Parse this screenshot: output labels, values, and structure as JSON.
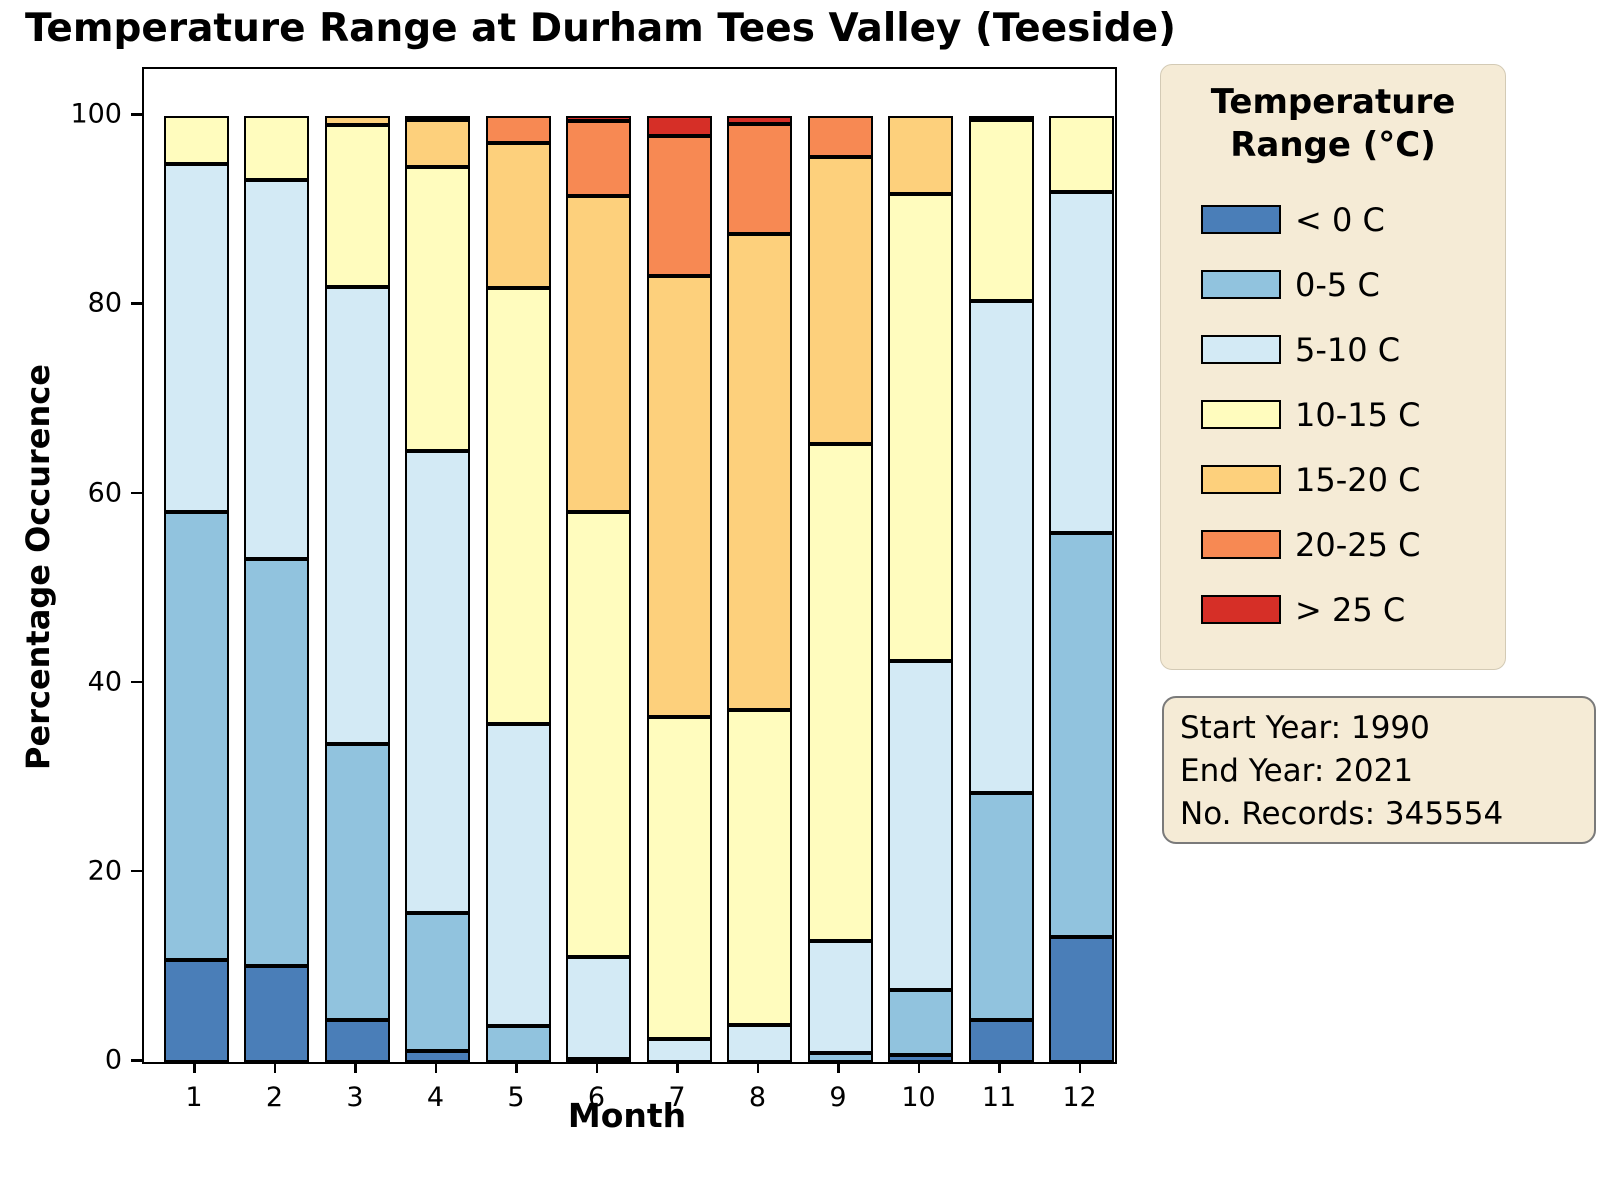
{
  "title": "Temperature Range at Durham Tees Valley (Teeside)",
  "axes": {
    "xlabel": "Month",
    "ylabel": "Percentage Occurence"
  },
  "legend": {
    "title_line1": "Temperature",
    "title_line2": "Range (°C)"
  },
  "info_box": {
    "line1": "Start Year: 1990",
    "line2": "End Year: 2021",
    "line3": "No. Records: 345554"
  },
  "chart_data": {
    "type": "bar",
    "stacked": true,
    "title": "Temperature Range at Durham Tees Valley (Teeside)",
    "xlabel": "Month",
    "ylabel": "Percentage Occurence",
    "ylim": [
      0,
      105
    ],
    "yticks": [
      0,
      20,
      40,
      60,
      80,
      100
    ],
    "categories": [
      "1",
      "2",
      "3",
      "4",
      "5",
      "6",
      "7",
      "8",
      "9",
      "10",
      "11",
      "12"
    ],
    "grid": false,
    "legend_title": "Temperature Range (°C)",
    "legend_position": "right",
    "bar_edge_color": "#000000",
    "series": [
      {
        "name": "< 0 C",
        "color": "#4A7EB8",
        "values": [
          10.8,
          10.2,
          4.4,
          1.2,
          0,
          0,
          0,
          0,
          0,
          0.7,
          4.4,
          13.2
        ]
      },
      {
        "name": "0-5 C",
        "color": "#91C3DE",
        "values": [
          47.4,
          43.0,
          29.2,
          14.6,
          3.8,
          0.3,
          0,
          0,
          1.0,
          6.9,
          24.1,
          42.7
        ]
      },
      {
        "name": "5-10 C",
        "color": "#D3EAF5",
        "values": [
          36.8,
          40.1,
          48.4,
          48.8,
          31.9,
          10.8,
          2.4,
          3.9,
          11.8,
          34.8,
          52.0,
          36.1
        ]
      },
      {
        "name": "10-15 C",
        "color": "#FFFCBE",
        "values": [
          5.0,
          6.7,
          17.1,
          30.0,
          46.1,
          47.1,
          34.1,
          33.3,
          52.5,
          49.4,
          19.1,
          8.0
        ]
      },
      {
        "name": "15-20 C",
        "color": "#FDD07C",
        "values": [
          0,
          0,
          0.9,
          5.0,
          15.4,
          33.4,
          46.6,
          50.4,
          30.4,
          8.2,
          0.4,
          0
        ]
      },
      {
        "name": "20-25 C",
        "color": "#F78953",
        "values": [
          0,
          0,
          0,
          0.4,
          2.8,
          7.9,
          14.8,
          11.6,
          4.3,
          0,
          0,
          0
        ]
      },
      {
        "name": "> 25 C",
        "color": "#D62F27",
        "values": [
          0,
          0,
          0,
          0,
          0,
          0.5,
          2.1,
          0.8,
          0,
          0,
          0,
          0
        ]
      }
    ]
  }
}
